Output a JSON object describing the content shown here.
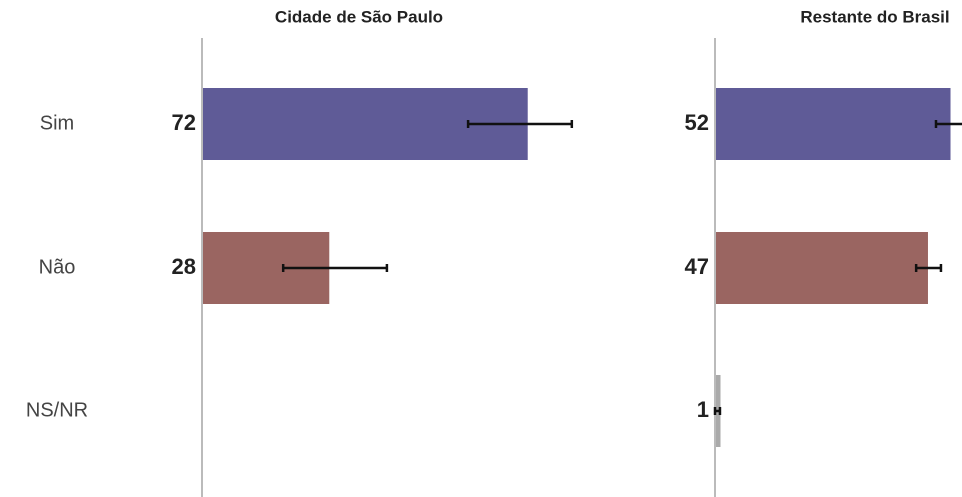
{
  "chart_data": [
    {
      "type": "bar",
      "title": "Cidade de São Paulo",
      "categories": [
        "Sim",
        "Não",
        "NS/NR"
      ],
      "values": [
        72,
        28,
        null
      ],
      "error_low": [
        59,
        18,
        null
      ],
      "error_high": [
        82,
        41,
        null
      ],
      "colors": [
        "#5f5b97",
        "#9a6561",
        "#aaaaaa"
      ]
    },
    {
      "type": "bar",
      "title": "Restante do Brasil",
      "values": [
        52,
        47,
        1
      ],
      "error_low": [
        49,
        44.6,
        0
      ],
      "error_high": [
        56,
        50.1,
        1.1
      ],
      "colors": [
        "#5f5b97",
        "#9a6561",
        "#aaaaaa"
      ]
    }
  ]
}
